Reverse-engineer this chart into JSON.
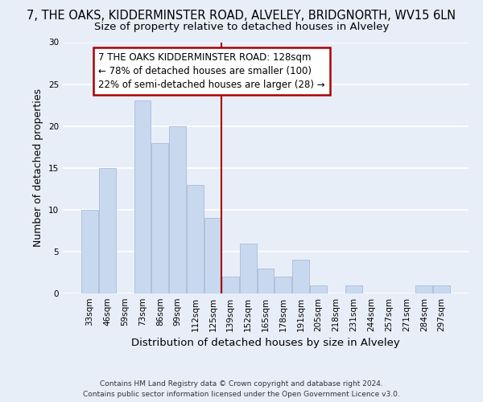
{
  "title": "7, THE OAKS, KIDDERMINSTER ROAD, ALVELEY, BRIDGNORTH, WV15 6LN",
  "subtitle": "Size of property relative to detached houses in Alveley",
  "xlabel": "Distribution of detached houses by size in Alveley",
  "ylabel": "Number of detached properties",
  "bar_color": "#c8d8ee",
  "bar_edge_color": "#aabbd8",
  "categories": [
    "33sqm",
    "46sqm",
    "59sqm",
    "73sqm",
    "86sqm",
    "99sqm",
    "112sqm",
    "125sqm",
    "139sqm",
    "152sqm",
    "165sqm",
    "178sqm",
    "191sqm",
    "205sqm",
    "218sqm",
    "231sqm",
    "244sqm",
    "257sqm",
    "271sqm",
    "284sqm",
    "297sqm"
  ],
  "values": [
    10,
    15,
    0,
    23,
    18,
    20,
    13,
    9,
    2,
    6,
    3,
    2,
    4,
    1,
    0,
    1,
    0,
    0,
    0,
    1,
    1
  ],
  "ylim": [
    0,
    30
  ],
  "yticks": [
    0,
    5,
    10,
    15,
    20,
    25,
    30
  ],
  "ref_line_x": 7.5,
  "annotation_title": "7 THE OAKS KIDDERMINSTER ROAD: 128sqm",
  "annotation_line1": "← 78% of detached houses are smaller (100)",
  "annotation_line2": "22% of semi-detached houses are larger (28) →",
  "annotation_box_color": "#ffffff",
  "annotation_border_color": "#aa0000",
  "ref_line_color": "#aa0000",
  "footer_line1": "Contains HM Land Registry data © Crown copyright and database right 2024.",
  "footer_line2": "Contains public sector information licensed under the Open Government Licence v3.0.",
  "background_color": "#e8eef8",
  "grid_color": "#ffffff",
  "title_fontsize": 10.5,
  "subtitle_fontsize": 9.5,
  "axis_label_fontsize": 9,
  "tick_fontsize": 7.5,
  "footer_fontsize": 6.5,
  "annotation_fontsize": 8.5
}
